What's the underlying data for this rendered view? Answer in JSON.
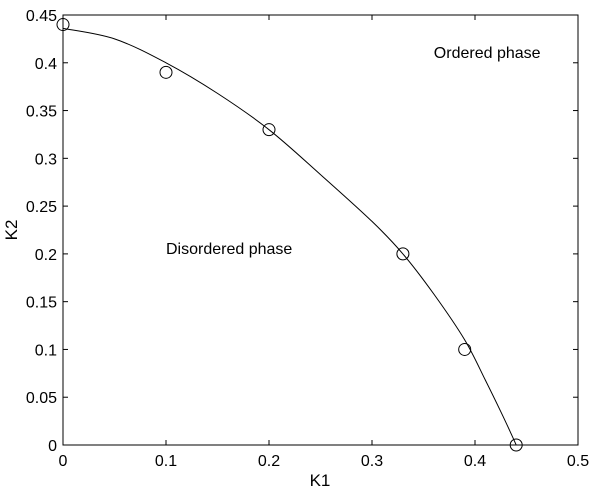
{
  "chart_data": {
    "type": "scatter",
    "title": "",
    "xlabel": "K1",
    "ylabel": "K2",
    "xlim": [
      0,
      0.5
    ],
    "ylim": [
      0,
      0.45
    ],
    "xticks": [
      "0",
      "0.1",
      "0.2",
      "0.3",
      "0.4",
      "0.5"
    ],
    "yticks": [
      "0",
      "0.05",
      "0.1",
      "0.15",
      "0.2",
      "0.25",
      "0.3",
      "0.35",
      "0.4",
      "0.45"
    ],
    "grid": false,
    "series": [
      {
        "marker": "open-circle",
        "x": [
          0,
          0.1,
          0.2,
          0.33,
          0.39,
          0.44
        ],
        "y": [
          0.44,
          0.39,
          0.33,
          0.2,
          0.1,
          0
        ]
      },
      {
        "line": "solid",
        "x": [
          0,
          0.05,
          0.1,
          0.15,
          0.2,
          0.25,
          0.3,
          0.33,
          0.36,
          0.39,
          0.41,
          0.425,
          0.435,
          0.44
        ],
        "y": [
          0.436,
          0.425,
          0.4,
          0.368,
          0.33,
          0.283,
          0.234,
          0.2,
          0.158,
          0.11,
          0.068,
          0.035,
          0.012,
          0
        ]
      }
    ],
    "annotations": [
      {
        "text": "Ordered phase",
        "x": 0.36,
        "y": 0.405
      },
      {
        "text": "Disordered phase",
        "x": 0.1,
        "y": 0.2
      }
    ]
  }
}
